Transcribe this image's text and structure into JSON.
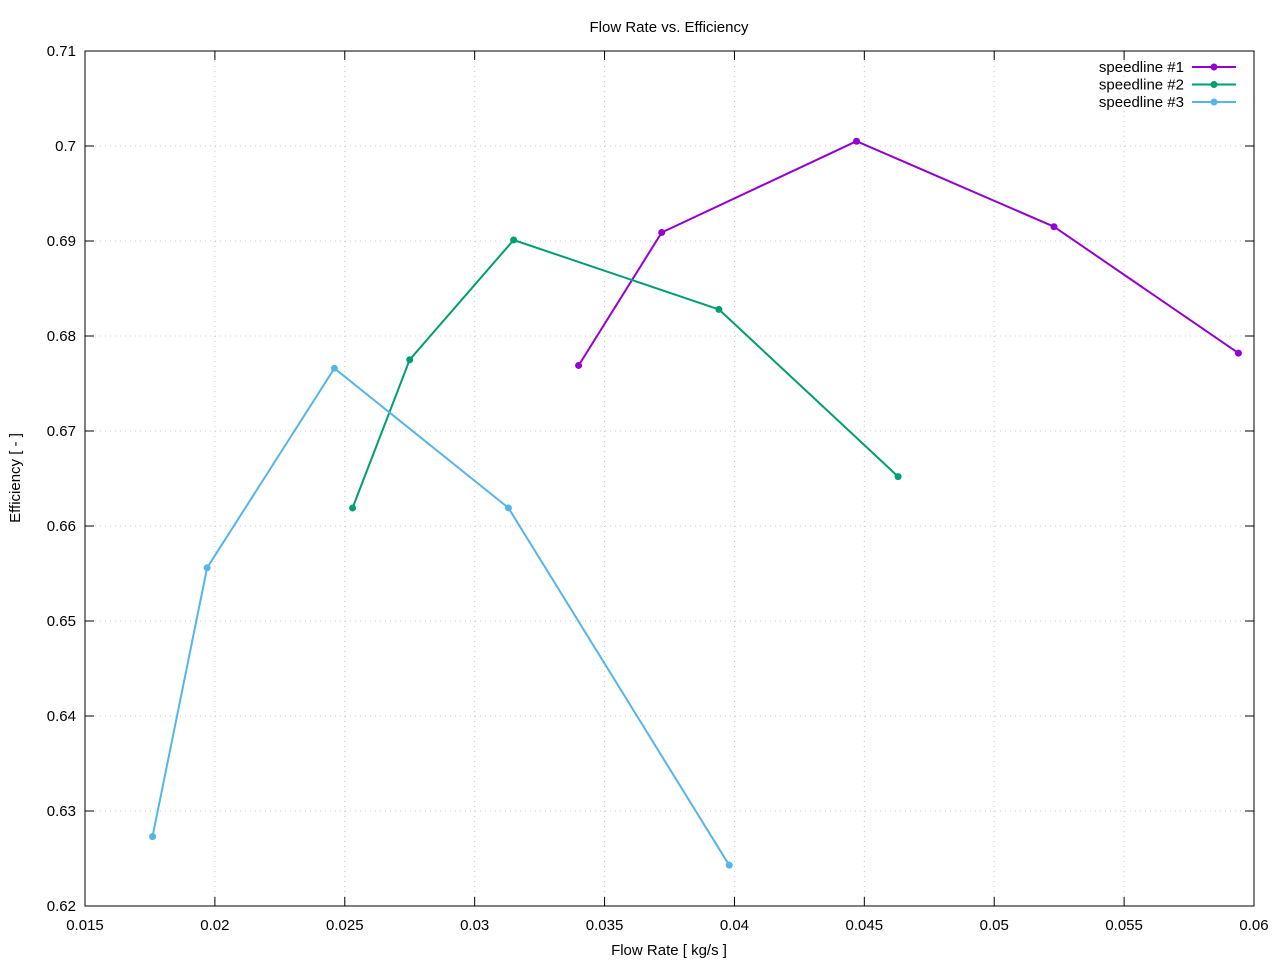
{
  "chart_data": {
    "type": "line",
    "title": "Flow Rate vs. Efficiency",
    "xlabel": "Flow Rate [ kg/s ]",
    "ylabel": "Efficiency [ - ]",
    "xlim": [
      0.015,
      0.06
    ],
    "ylim": [
      0.62,
      0.71
    ],
    "xticks": [
      0.015,
      0.02,
      0.025,
      0.03,
      0.035,
      0.04,
      0.045,
      0.05,
      0.055,
      0.06
    ],
    "xtick_labels": [
      "0.015",
      "0.02",
      "0.025",
      "0.03",
      "0.035",
      "0.04",
      "0.045",
      "0.05",
      "0.055",
      "0.06"
    ],
    "yticks": [
      0.62,
      0.63,
      0.64,
      0.65,
      0.66,
      0.67,
      0.68,
      0.69,
      0.7,
      0.71
    ],
    "ytick_labels": [
      "0.62",
      "0.63",
      "0.64",
      "0.65",
      "0.66",
      "0.67",
      "0.68",
      "0.69",
      "0.7",
      "0.71"
    ],
    "grid": true,
    "legend_position": "top-right",
    "series": [
      {
        "name": "speedline #1",
        "color": "#9400d3",
        "x": [
          0.034,
          0.0372,
          0.0447,
          0.0523,
          0.0594
        ],
        "y": [
          0.6769,
          0.6909,
          0.7005,
          0.6915,
          0.6782
        ]
      },
      {
        "name": "speedline #2",
        "color": "#009e73",
        "x": [
          0.0253,
          0.0275,
          0.0315,
          0.0394,
          0.0463
        ],
        "y": [
          0.6619,
          0.6775,
          0.6901,
          0.6828,
          0.6652
        ]
      },
      {
        "name": "speedline #3",
        "color": "#56b4e9",
        "x": [
          0.0176,
          0.0197,
          0.0246,
          0.0313,
          0.0398
        ],
        "y": [
          0.6273,
          0.6556,
          0.6766,
          0.6619,
          0.6243
        ]
      }
    ]
  }
}
